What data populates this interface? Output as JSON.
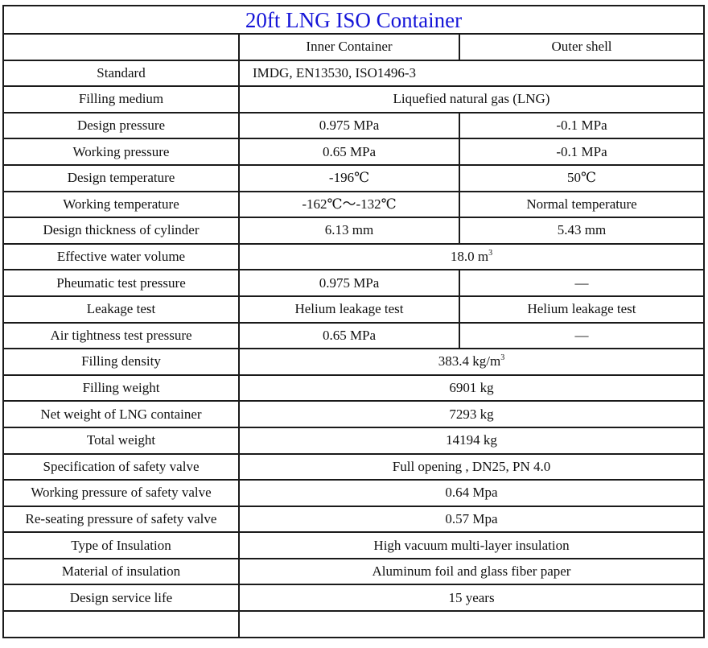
{
  "title": "20ft LNG ISO Container",
  "colors": {
    "title": "#1515d8",
    "border": "#1a1a1a",
    "text": "#111111"
  },
  "columns": {
    "blank": "",
    "inner": "Inner Container",
    "outer": "Outer shell"
  },
  "rows": [
    {
      "label": "Standard",
      "value": "IMDG, EN13530, ISO1496-3",
      "span": true,
      "align": "left"
    },
    {
      "label": "Filling medium",
      "value": "Liquefied natural gas (LNG)",
      "span": true
    },
    {
      "label": "Design pressure",
      "inner": "0.975 MPa",
      "outer": "-0.1 MPa"
    },
    {
      "label": "Working pressure",
      "inner": "0.65 MPa",
      "outer": "-0.1 MPa"
    },
    {
      "label": "Design temperature",
      "inner": "-196℃",
      "outer": "50℃"
    },
    {
      "label": "Working temperature",
      "inner": "-162℃～-132℃",
      "outer": "Normal temperature"
    },
    {
      "label": "Design thickness of cylinder",
      "inner": "6.13 mm",
      "outer": "5.43 mm"
    },
    {
      "label": "Effective water volume",
      "value": "18.0 m",
      "sup": "3",
      "span": true
    },
    {
      "label": "Pheumatic test pressure",
      "inner": "0.975 MPa",
      "outer": "—"
    },
    {
      "label": "Leakage test",
      "inner": "Helium leakage test",
      "outer": "Helium leakage test"
    },
    {
      "label": "Air tightness test pressure",
      "inner": "0.65 MPa",
      "outer": "—"
    },
    {
      "label": "Filling density",
      "value": "383.4 kg/m",
      "sup": "3",
      "span": true
    },
    {
      "label": "Filling weight",
      "value": "6901 kg",
      "span": true
    },
    {
      "label": "Net weight of LNG container",
      "value": "7293 kg",
      "span": true
    },
    {
      "label": "Total weight",
      "value": "14194 kg",
      "span": true
    },
    {
      "label": "Specification of safety valve",
      "value": "Full opening , DN25, PN 4.0",
      "span": true
    },
    {
      "label": "Working pressure of safety valve",
      "value": "0.64 Mpa",
      "span": true
    },
    {
      "label": "Re-seating pressure of safety valve",
      "value": "0.57 Mpa",
      "span": true
    },
    {
      "label": "Type of Insulation",
      "value": "High vacuum multi-layer insulation",
      "span": true
    },
    {
      "label": "Material of insulation",
      "value": "Aluminum foil and glass fiber paper",
      "span": true
    },
    {
      "label": "Design service life",
      "value": "15 years",
      "span": true
    }
  ]
}
